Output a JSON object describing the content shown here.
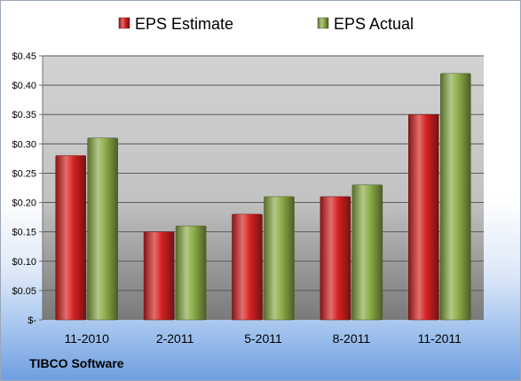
{
  "source": "TIBCO Software",
  "chart_data": {
    "type": "bar",
    "title": "",
    "xlabel": "",
    "ylabel": "",
    "categories": [
      "11-2010",
      "2-2011",
      "5-2011",
      "8-2011",
      "11-2011"
    ],
    "series": [
      {
        "name": "EPS Estimate",
        "values": [
          0.28,
          0.15,
          0.18,
          0.21,
          0.35
        ],
        "color": "#d42020"
      },
      {
        "name": "EPS Actual",
        "values": [
          0.31,
          0.16,
          0.21,
          0.23,
          0.42
        ],
        "color": "#8aab45"
      }
    ],
    "ylim": [
      0,
      0.45
    ],
    "y_ticks": [
      {
        "value": 0,
        "label": "$-"
      },
      {
        "value": 0.05,
        "label": "$0.05"
      },
      {
        "value": 0.1,
        "label": "$0.10"
      },
      {
        "value": 0.15,
        "label": "$0.15"
      },
      {
        "value": 0.2,
        "label": "$0.20"
      },
      {
        "value": 0.25,
        "label": "$0.25"
      },
      {
        "value": 0.3,
        "label": "$0.30"
      },
      {
        "value": 0.35,
        "label": "$0.35"
      },
      {
        "value": 0.4,
        "label": "$0.40"
      },
      {
        "value": 0.45,
        "label": "$0.45"
      }
    ],
    "grid": true,
    "legend_position": "top"
  }
}
